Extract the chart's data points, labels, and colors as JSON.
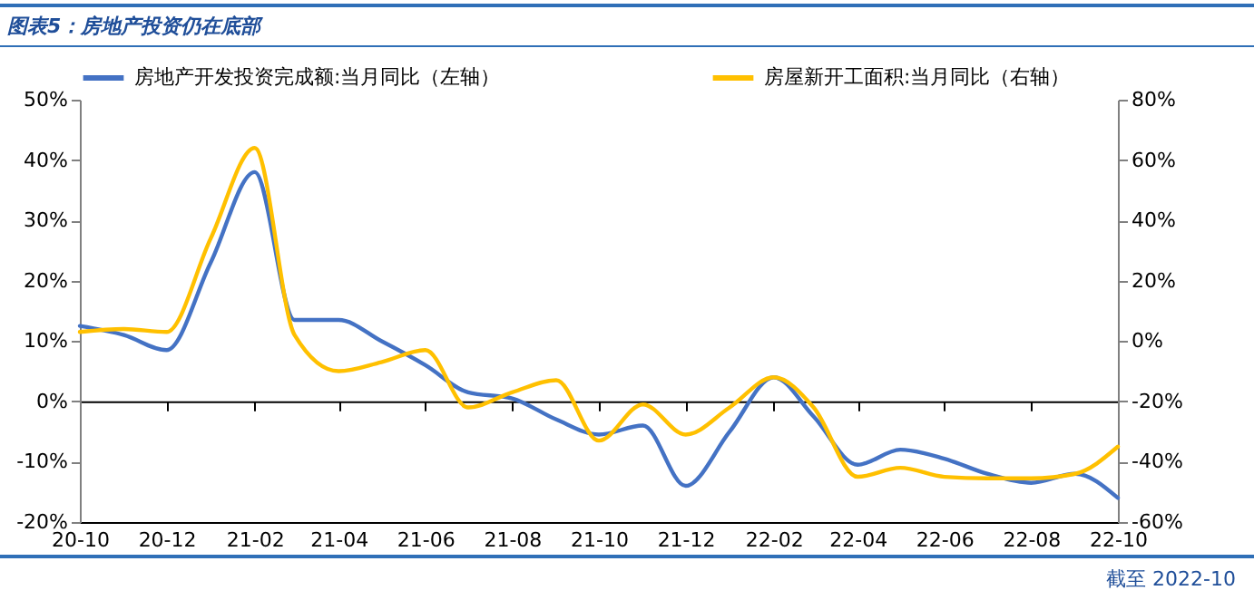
{
  "chart_data": {
    "type": "line",
    "title": "图表5：房地产投资仍在底部",
    "annotations": [
      "截至 2022-10"
    ],
    "x": [
      "2020-10",
      "2020-11",
      "2020-12",
      "2021-01",
      "2021-02",
      "2021-03",
      "2021-04",
      "2021-05",
      "2021-06",
      "2021-07",
      "2021-08",
      "2021-09",
      "2021-10",
      "2021-11",
      "2021-12",
      "2022-01",
      "2022-02",
      "2022-03",
      "2022-04",
      "2022-05",
      "2022-06",
      "2022-07",
      "2022-08",
      "2022-09",
      "2022-10"
    ],
    "xlim": [
      "2020-10",
      "2022-10"
    ],
    "xticks": [
      {
        "value": "2020-10",
        "label": "20-10"
      },
      {
        "value": "2020-12",
        "label": "20-12"
      },
      {
        "value": "2021-02",
        "label": "21-02"
      },
      {
        "value": "2021-04",
        "label": "21-04"
      },
      {
        "value": "2021-06",
        "label": "21-06"
      },
      {
        "value": "2021-08",
        "label": "21-08"
      },
      {
        "value": "2021-10",
        "label": "21-10"
      },
      {
        "value": "2021-12",
        "label": "21-12"
      },
      {
        "value": "2022-02",
        "label": "22-02"
      },
      {
        "value": "2022-04",
        "label": "22-04"
      },
      {
        "value": "2022-06",
        "label": "22-06"
      },
      {
        "value": "2022-08",
        "label": "22-08"
      },
      {
        "value": "2022-10",
        "label": "22-10"
      }
    ],
    "ylim": [
      -20,
      50
    ],
    "yticks": [
      {
        "value": -20,
        "label": "-20%"
      },
      {
        "value": -10,
        "label": "-10%"
      },
      {
        "value": 0,
        "label": "0%"
      },
      {
        "value": 10,
        "label": "10%"
      },
      {
        "value": 20,
        "label": "20%"
      },
      {
        "value": 30,
        "label": "30%"
      },
      {
        "value": 40,
        "label": "40%"
      },
      {
        "value": 50,
        "label": "50%"
      }
    ],
    "y2lim": [
      -60,
      80
    ],
    "y2ticks": [
      {
        "value": -60,
        "label": "-60%"
      },
      {
        "value": -40,
        "label": "-40%"
      },
      {
        "value": -20,
        "label": "-20%"
      },
      {
        "value": 0,
        "label": "0%"
      },
      {
        "value": 20,
        "label": "20%"
      },
      {
        "value": 40,
        "label": "40%"
      },
      {
        "value": 60,
        "label": "60%"
      },
      {
        "value": 80,
        "label": "80%"
      }
    ],
    "series": [
      {
        "name": "房地产开发投资完成额:当月同比（左轴）",
        "color": "#4472c4",
        "values": [
          12.5,
          11,
          8.5,
          23,
          38,
          13.5,
          13.5,
          10,
          6,
          1.5,
          0.5,
          -3,
          -5.5,
          -4,
          -14,
          -5,
          4,
          -2.5,
          -10.5,
          -8,
          -9.5,
          -12,
          -13.5,
          -12,
          -16
        ]
      },
      {
        "name": "房屋新开工面积:当月同比（右轴）",
        "color": "#ffc000",
        "axis": "y2",
        "values": [
          3,
          4,
          3,
          34,
          64,
          2,
          -10,
          -7,
          -3,
          -22,
          -17,
          -13,
          -33,
          -21,
          -31,
          -22,
          -12,
          -22,
          -45,
          -42,
          -45,
          -45.5,
          -45.5,
          -44,
          -35
        ]
      }
    ],
    "legend": "top",
    "marker": "none",
    "line_style": "solid"
  }
}
